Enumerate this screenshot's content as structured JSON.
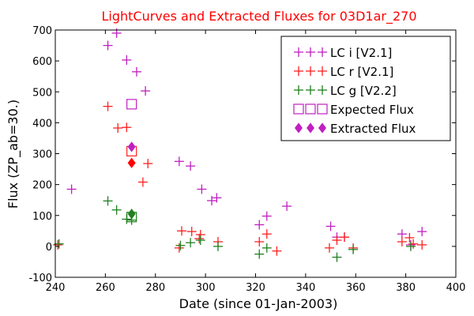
{
  "chart_data": {
    "type": "scatter",
    "title": "LightCurves and Extracted Fluxes for 03D1ar_270",
    "title_color": "#ff0000",
    "xlabel": "Date (since 01-Jan-2003)",
    "ylabel": "Flux (ZP_ab=30.)",
    "xlim": [
      240,
      400
    ],
    "ylim": [
      -100,
      700
    ],
    "x_ticks": [
      240,
      260,
      280,
      300,
      320,
      340,
      360,
      380,
      400
    ],
    "y_ticks": [
      -100,
      0,
      100,
      200,
      300,
      400,
      500,
      600,
      700
    ],
    "x_tick_labels": [
      "240",
      "260",
      "280",
      "300",
      "320",
      "340",
      "360",
      "380",
      "400"
    ],
    "y_tick_labels": [
      "-100",
      "0",
      "100",
      "200",
      "300",
      "400",
      "500",
      "600",
      "700"
    ],
    "grid": false,
    "legend_position": "top-right",
    "series": [
      {
        "name": "LC i [V2.1]",
        "marker": "plus",
        "color": "#c020c0",
        "points": [
          [
            246.5,
            185
          ],
          [
            261,
            650
          ],
          [
            264.5,
            690
          ],
          [
            268.5,
            603
          ],
          [
            272.5,
            565
          ],
          [
            276,
            503
          ],
          [
            289.5,
            275
          ],
          [
            294,
            260
          ],
          [
            298.5,
            185
          ],
          [
            302.5,
            148
          ],
          [
            304.5,
            157
          ],
          [
            321.5,
            70
          ],
          [
            324.5,
            98
          ],
          [
            332.5,
            130
          ],
          [
            350,
            65
          ],
          [
            352.5,
            30
          ],
          [
            355.5,
            30
          ],
          [
            382,
            5
          ],
          [
            378.5,
            40
          ],
          [
            386.5,
            48
          ]
        ]
      },
      {
        "name": "LC r [V2.1]",
        "marker": "plus",
        "color": "#ff2020",
        "points": [
          [
            241,
            5
          ],
          [
            261,
            453
          ],
          [
            265,
            383
          ],
          [
            268.5,
            385
          ],
          [
            275,
            208
          ],
          [
            277,
            268
          ],
          [
            289.5,
            -5
          ],
          [
            290.5,
            50
          ],
          [
            294.5,
            48
          ],
          [
            297.5,
            25
          ],
          [
            298,
            38
          ],
          [
            305,
            15
          ],
          [
            321.5,
            15
          ],
          [
            324.5,
            40
          ],
          [
            328.5,
            -15
          ],
          [
            349.5,
            -5
          ],
          [
            352.5,
            20
          ],
          [
            355.5,
            30
          ],
          [
            359,
            -5
          ],
          [
            378.5,
            15
          ],
          [
            381.5,
            28
          ],
          [
            383,
            8
          ],
          [
            386.5,
            5
          ]
        ]
      },
      {
        "name": "LC g [V2.2]",
        "marker": "plus",
        "color": "#208020",
        "points": [
          [
            241.5,
            8
          ],
          [
            261,
            147
          ],
          [
            264.5,
            118
          ],
          [
            268.5,
            88
          ],
          [
            270.5,
            85
          ],
          [
            290,
            3
          ],
          [
            294,
            12
          ],
          [
            298,
            20
          ],
          [
            305,
            0
          ],
          [
            321.5,
            -25
          ],
          [
            324.5,
            -5
          ],
          [
            352.5,
            -35
          ],
          [
            359,
            -10
          ],
          [
            382,
            0
          ]
        ]
      },
      {
        "name": "Expected Flux",
        "marker": "square",
        "color": "#c020c0",
        "points": [
          [
            270.5,
            460
          ],
          [
            270.5,
            308
          ],
          [
            270.5,
            95
          ]
        ]
      },
      {
        "name": "Extracted Flux",
        "marker": "diamond",
        "color": "#c020c0",
        "points": [
          [
            270.5,
            322
          ],
          [
            270.5,
            270
          ],
          [
            270.5,
            105
          ]
        ]
      }
    ],
    "extracted_flux_colors": [
      "#c020c0",
      "#ff0000",
      "#208020"
    ],
    "expected_flux_colors": [
      "#c020c0",
      "#ff2020",
      "#208020"
    ],
    "legend": [
      {
        "label": "LC i [V2.1]",
        "marker": "plus",
        "color": "#c020c0"
      },
      {
        "label": "LC r [V2.1]",
        "marker": "plus",
        "color": "#ff2020"
      },
      {
        "label": "LC g [V2.2]",
        "marker": "plus",
        "color": "#208020"
      },
      {
        "label": "Expected Flux",
        "marker": "square",
        "color": "#c020c0"
      },
      {
        "label": "Extracted Flux",
        "marker": "diamond",
        "color": "#c020c0"
      }
    ]
  }
}
